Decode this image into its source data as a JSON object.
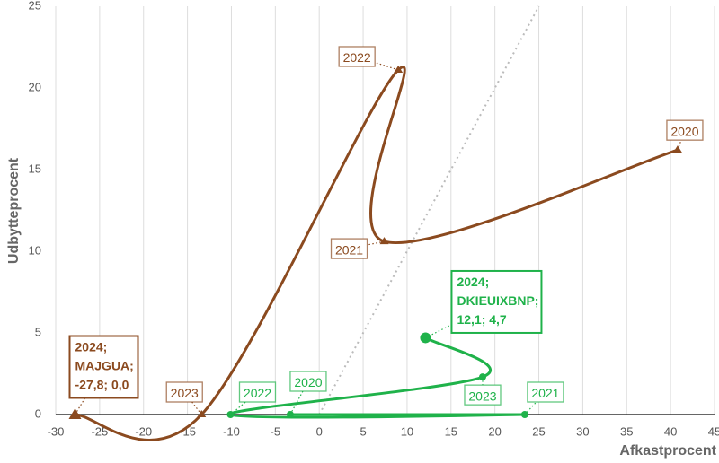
{
  "chart_data": {
    "type": "scatter",
    "x_label": "Afkastprocent",
    "y_label": "Udbytteprocent",
    "xlim": [
      -30,
      45
    ],
    "ylim": [
      0,
      25
    ],
    "xticks": [
      -30,
      -25,
      -20,
      -15,
      -10,
      -5,
      0,
      5,
      10,
      15,
      20,
      25,
      30,
      35,
      40,
      45
    ],
    "yticks": [
      0,
      5,
      10,
      15,
      20,
      25
    ],
    "grid": true,
    "series": [
      {
        "color": "#8b4a1f",
        "marker": "triangle",
        "x": [
          40.8,
          7.4,
          9.0,
          -13.4,
          -27.8
        ],
        "values": [
          16.2,
          10.6,
          21.1,
          0,
          0
        ],
        "point_labels": [
          [
            "2020"
          ],
          [
            "2021"
          ],
          [
            "2022"
          ],
          [
            "2023"
          ],
          [
            "2024;",
            "MAJGUA;",
            "-27,8; 0,0"
          ]
        ]
      },
      {
        "color": "#1fb24a",
        "marker": "circle",
        "x": [
          -3.3,
          23.4,
          -10.1,
          18.6,
          12.1
        ],
        "values": [
          0,
          0,
          0,
          2.3,
          4.7
        ],
        "point_labels": [
          [
            "2020"
          ],
          [
            "2021"
          ],
          [
            "2022"
          ],
          [
            "2023"
          ],
          [
            "2024;",
            "DKIEUIXBNP;",
            "12,1; 4,7"
          ]
        ]
      }
    ]
  }
}
